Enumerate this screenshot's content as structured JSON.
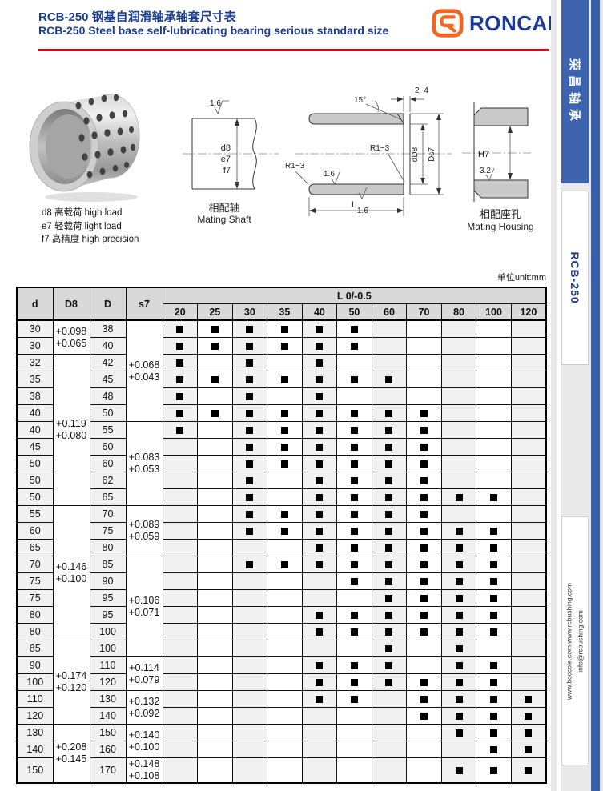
{
  "header": {
    "title_cn": "RCB-250 钢基自润滑轴承轴套尺寸表",
    "title_en": "RCB-250 Steel base self-lubricating bearing serious standard size",
    "logo_text": "RONCAN",
    "logo_reg": "®"
  },
  "sidebar": {
    "tab_top": "荣昌轴承",
    "tab_model": "RCB-250",
    "web_line1": "www.boccole.com   www.rcbushing.com",
    "web_line2": "info@rcbushing.com"
  },
  "legend": {
    "items": [
      "d8 高载荷  high load",
      "e7 轻载荷  light load",
      "f7 高精度  high precision"
    ]
  },
  "drawings": {
    "shaft": {
      "roughness": "1.6",
      "fits": [
        "d8",
        "e7",
        "f7"
      ],
      "caption_cn": "相配轴",
      "caption_en": "Mating Shaft"
    },
    "bushing": {
      "angle": "15°",
      "wall": "2~4",
      "bore": "dD8",
      "od": "Ds7",
      "r_right": "R1~3",
      "r_left": "R1~3",
      "rough_top": "1.6",
      "rough_bottom": "1.6",
      "length": "L"
    },
    "housing": {
      "fit": "H7",
      "roughness": "3.2",
      "caption_cn": "相配座孔",
      "caption_en": "Mating Housing"
    }
  },
  "table": {
    "unit": "单位unit:mm",
    "headers": {
      "d": "d",
      "d8": "D8",
      "dcol": "D",
      "s7": "s7",
      "l": "L 0/-0.5"
    },
    "l_cols": [
      "20",
      "25",
      "30",
      "35",
      "40",
      "50",
      "60",
      "70",
      "80",
      "100",
      "120"
    ],
    "d8_groups": [
      {
        "start": 0,
        "span": 2,
        "lines": [
          "+0.098",
          "+0.065"
        ]
      },
      {
        "start": 2,
        "span": 9,
        "lines": [
          "+0.119",
          "+0.080"
        ]
      },
      {
        "start": 11,
        "span": 8,
        "lines": [
          "+0.146",
          "+0.100"
        ]
      },
      {
        "start": 19,
        "span": 5,
        "lines": [
          "+0.174",
          "+0.120"
        ]
      },
      {
        "start": 24,
        "span": 3,
        "lines": [
          "+0.208",
          "+0.145"
        ]
      }
    ],
    "s7_groups": [
      {
        "start": 0,
        "span": 6,
        "lines": [
          "+0.068",
          "+0.043"
        ]
      },
      {
        "start": 6,
        "span": 5,
        "lines": [
          "+0.083",
          "+0.053"
        ]
      },
      {
        "start": 11,
        "span": 3,
        "lines": [
          "+0.089",
          "+0.059"
        ]
      },
      {
        "start": 14,
        "span": 6,
        "lines": [
          "+0.106",
          "+0.071"
        ]
      },
      {
        "start": 20,
        "span": 2,
        "lines": [
          "+0.114",
          "+0.079"
        ]
      },
      {
        "start": 22,
        "span": 2,
        "lines": [
          "+0.132",
          "+0.092"
        ]
      },
      {
        "start": 24,
        "span": 2,
        "lines": [
          "+0.140",
          "+0.100"
        ]
      },
      {
        "start": 26,
        "span": 1,
        "lines": [
          "+0.148",
          "+0.108"
        ]
      }
    ],
    "rows": [
      {
        "d": "30",
        "D": "38",
        "marks": [
          "20",
          "25",
          "30",
          "35",
          "40",
          "50"
        ]
      },
      {
        "d": "30",
        "D": "40",
        "marks": [
          "20",
          "25",
          "30",
          "35",
          "40",
          "50"
        ]
      },
      {
        "d": "32",
        "D": "42",
        "marks": [
          "20",
          "30",
          "40"
        ]
      },
      {
        "d": "35",
        "D": "45",
        "marks": [
          "20",
          "25",
          "30",
          "35",
          "40",
          "50",
          "60"
        ]
      },
      {
        "d": "38",
        "D": "48",
        "marks": [
          "20",
          "30",
          "40"
        ]
      },
      {
        "d": "40",
        "D": "50",
        "marks": [
          "20",
          "25",
          "30",
          "35",
          "40",
          "50",
          "60",
          "70"
        ]
      },
      {
        "d": "40",
        "D": "55",
        "marks": [
          "20",
          "30",
          "35",
          "40",
          "50",
          "60",
          "70"
        ]
      },
      {
        "d": "45",
        "D": "60",
        "marks": [
          "30",
          "35",
          "40",
          "50",
          "60",
          "70"
        ]
      },
      {
        "d": "50",
        "D": "60",
        "marks": [
          "30",
          "35",
          "40",
          "50",
          "60",
          "70"
        ]
      },
      {
        "d": "50",
        "D": "62",
        "marks": [
          "30",
          "40",
          "50",
          "60",
          "70"
        ]
      },
      {
        "d": "50",
        "D": "65",
        "marks": [
          "30",
          "40",
          "50",
          "60",
          "70",
          "80",
          "100"
        ]
      },
      {
        "d": "55",
        "D": "70",
        "marks": [
          "30",
          "35",
          "40",
          "50",
          "60",
          "70"
        ]
      },
      {
        "d": "60",
        "D": "75",
        "marks": [
          "30",
          "35",
          "40",
          "50",
          "60",
          "70",
          "80",
          "100"
        ]
      },
      {
        "d": "65",
        "D": "80",
        "marks": [
          "40",
          "50",
          "60",
          "70",
          "80",
          "100"
        ]
      },
      {
        "d": "70",
        "D": "85",
        "marks": [
          "30",
          "35",
          "40",
          "50",
          "60",
          "70",
          "80",
          "100"
        ]
      },
      {
        "d": "75",
        "D": "90",
        "marks": [
          "50",
          "60",
          "70",
          "80",
          "100"
        ]
      },
      {
        "d": "75",
        "D": "95",
        "marks": [
          "60",
          "70",
          "80",
          "100"
        ]
      },
      {
        "d": "80",
        "D": "95",
        "marks": [
          "40",
          "50",
          "60",
          "70",
          "80",
          "100"
        ]
      },
      {
        "d": "80",
        "D": "100",
        "marks": [
          "40",
          "50",
          "60",
          "70",
          "80",
          "100"
        ]
      },
      {
        "d": "85",
        "D": "100",
        "marks": [
          "60",
          "80"
        ]
      },
      {
        "d": "90",
        "D": "110",
        "marks": [
          "40",
          "50",
          "60",
          "80",
          "100"
        ]
      },
      {
        "d": "100",
        "D": "120",
        "marks": [
          "40",
          "50",
          "60",
          "70",
          "80",
          "100"
        ]
      },
      {
        "d": "110",
        "D": "130",
        "marks": [
          "40",
          "50",
          "70",
          "80",
          "100",
          "120"
        ]
      },
      {
        "d": "120",
        "D": "140",
        "marks": [
          "70",
          "80",
          "100",
          "120"
        ]
      },
      {
        "d": "130",
        "D": "150",
        "marks": [
          "80",
          "100",
          "120"
        ]
      },
      {
        "d": "140",
        "D": "160",
        "marks": [
          "100",
          "120"
        ]
      },
      {
        "d": "150",
        "D": "170",
        "marks": [
          "80",
          "100",
          "120"
        ]
      }
    ]
  },
  "colors": {
    "accent_red": "#e60012",
    "brand_navy": "#1c3e8f",
    "brand_orange": "#f26522",
    "sidebar_blue": "#3e64b0"
  }
}
